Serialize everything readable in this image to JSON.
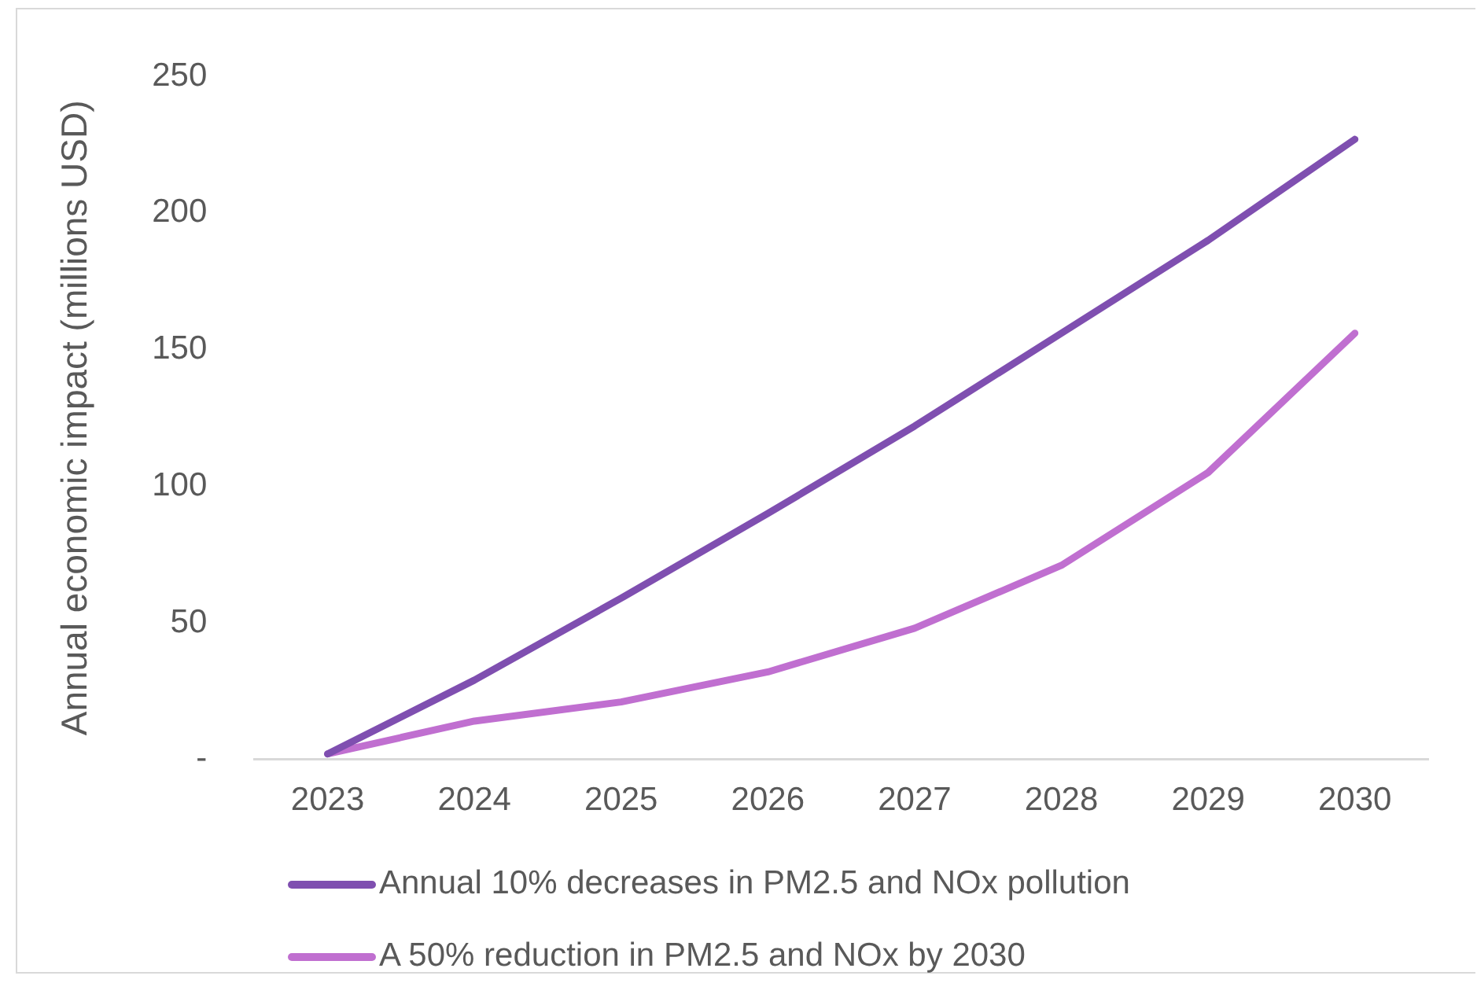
{
  "chart_data": {
    "type": "line",
    "ylabel": "Annual economic impact (millions USD)",
    "categories": [
      "2023",
      "2024",
      "2025",
      "2026",
      "2027",
      "2028",
      "2029",
      "2030"
    ],
    "series": [
      {
        "name": "Annual 10% decreases in PM2.5 and NOx pollution",
        "color": "#7f4fb0",
        "values": [
          2,
          29,
          59,
          90,
          122,
          156,
          190,
          227
        ]
      },
      {
        "name": "A 50% reduction in PM2.5 and NOx by 2030",
        "color": "#c06fd0",
        "values": [
          2,
          14,
          21,
          32,
          48,
          71,
          105,
          156
        ]
      }
    ],
    "ylim": [
      0,
      250
    ],
    "yticks": [
      {
        "value": 0,
        "label": "-"
      },
      50,
      100,
      150,
      200,
      250
    ],
    "grid": false,
    "legend": "bottom",
    "marker": "none",
    "line_style": "solid"
  }
}
